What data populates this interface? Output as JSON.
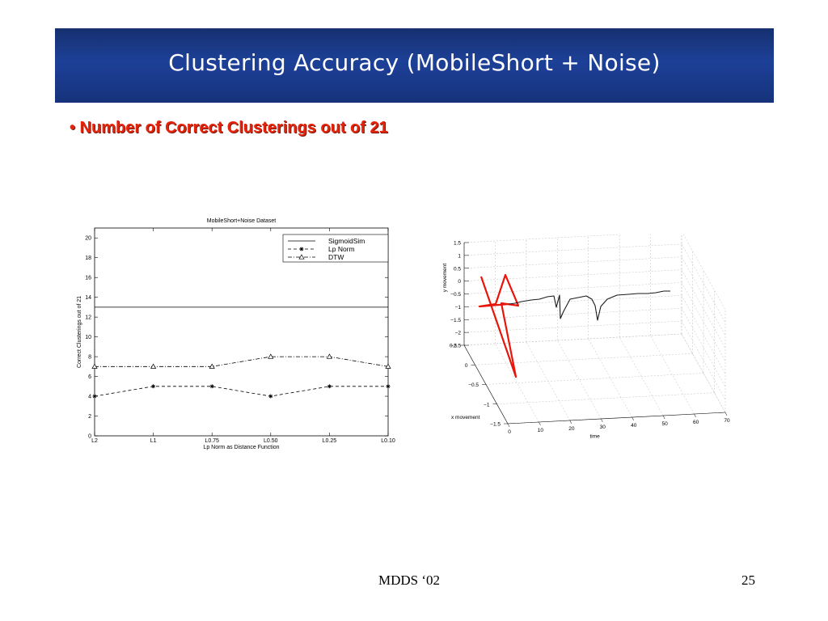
{
  "slide": {
    "title": "Clustering Accuracy (MobileShort + Noise)",
    "bullet": "• Number  of Correct Clusterings out of 21",
    "footer": "MDDS ‘02",
    "page_number": "25"
  },
  "colors": {
    "header_dark": "#16306f",
    "header_mid": "#1d4098",
    "bullet": "#e8230b",
    "red_trajectory": "#e8150b",
    "black_trajectory": "#1a1a1a"
  },
  "chart_data": [
    {
      "type": "line",
      "title": "MobileShort+Noise Dataset",
      "xlabel": "Lp Norm as Distance Function",
      "ylabel": "Correct Clusterings out of 21",
      "categories": [
        "L2",
        "L1",
        "L0.75",
        "L0.50",
        "L0.25",
        "L0.10"
      ],
      "ylim": [
        0,
        21
      ],
      "yticks": [
        0,
        2,
        4,
        6,
        8,
        10,
        12,
        14,
        16,
        18,
        20
      ],
      "legend_position": "top-right",
      "grid": false,
      "series": [
        {
          "name": "SigmoidSim",
          "values": [
            13,
            13,
            13,
            13,
            13,
            13
          ],
          "style": "solid",
          "marker": "none"
        },
        {
          "name": "Lp Norm",
          "values": [
            4,
            5,
            5,
            4,
            5,
            5
          ],
          "style": "dashed",
          "marker": "star"
        },
        {
          "name": "DTW",
          "values": [
            7,
            7,
            7,
            8,
            8,
            7
          ],
          "style": "dashdot",
          "marker": "triangle"
        }
      ]
    },
    {
      "type": "line",
      "subtype": "3d",
      "xlabel": "time",
      "ylabel": "x movement",
      "zlabel": "y movement",
      "grid": true,
      "x_ticks": [
        "0",
        "10",
        "20",
        "30",
        "40",
        "50",
        "60",
        "70"
      ],
      "y_ticks": [
        "0.5",
        "0",
        "−0.5",
        "−1",
        "−1.5"
      ],
      "z_ticks": [
        "1.5",
        "1",
        "0.5",
        "0",
        "−0.5",
        "−1",
        "−1.5",
        "−2",
        "−2.5"
      ]
    }
  ]
}
